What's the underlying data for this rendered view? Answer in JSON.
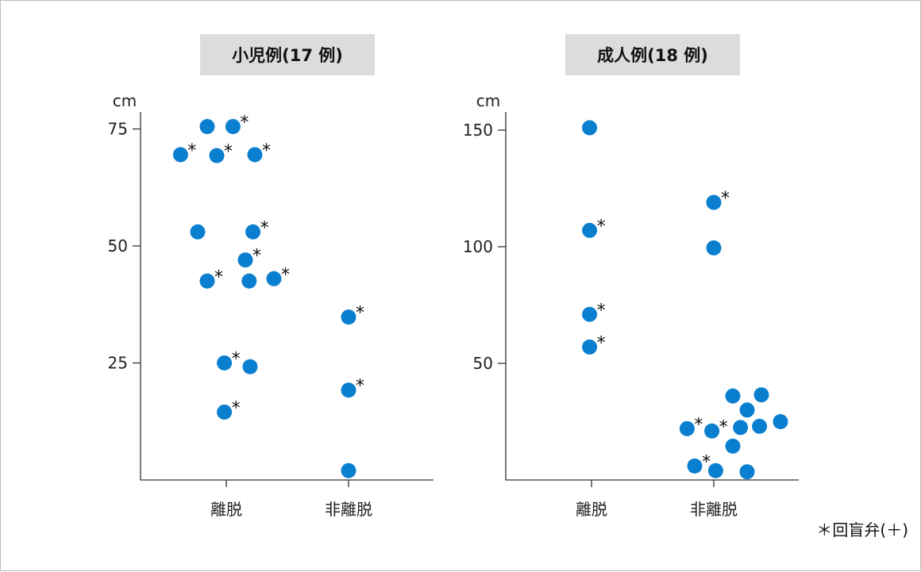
{
  "footnote": "＊回盲弁(＋)",
  "colors": {
    "point": "#0a7fcf",
    "title_bg": "#dcdcdc"
  },
  "chart_data": [
    {
      "type": "scatter",
      "title": "小児例(17 例)",
      "ylabel": "cm",
      "ylim": [
        0,
        76
      ],
      "yticks": [
        25,
        50,
        75
      ],
      "categories": [
        "離脱",
        "非離脱"
      ],
      "points": [
        {
          "category": "離脱",
          "x": -0.2,
          "y": 75.5,
          "star": false
        },
        {
          "category": "離脱",
          "x": 0.07,
          "y": 75.5,
          "star": true
        },
        {
          "category": "離脱",
          "x": -0.48,
          "y": 69.5,
          "star": true
        },
        {
          "category": "離脱",
          "x": -0.1,
          "y": 69.3,
          "star": true
        },
        {
          "category": "離脱",
          "x": 0.3,
          "y": 69.5,
          "star": true
        },
        {
          "category": "離脱",
          "x": -0.3,
          "y": 53.0,
          "star": false
        },
        {
          "category": "離脱",
          "x": 0.28,
          "y": 53.0,
          "star": true
        },
        {
          "category": "離脱",
          "x": 0.2,
          "y": 47.0,
          "star": true
        },
        {
          "category": "離脱",
          "x": -0.2,
          "y": 42.5,
          "star": true
        },
        {
          "category": "離脱",
          "x": 0.24,
          "y": 42.5,
          "star": false
        },
        {
          "category": "離脱",
          "x": 0.5,
          "y": 43.0,
          "star": true
        },
        {
          "category": "離脱",
          "x": -0.02,
          "y": 25.0,
          "star": true
        },
        {
          "category": "離脱",
          "x": 0.25,
          "y": 24.2,
          "star": false
        },
        {
          "category": "離脱",
          "x": -0.02,
          "y": 14.5,
          "star": true
        },
        {
          "category": "非離脱",
          "x": 0.0,
          "y": 34.8,
          "star": true
        },
        {
          "category": "非離脱",
          "x": 0.0,
          "y": 19.2,
          "star": true
        },
        {
          "category": "非離脱",
          "x": 0.0,
          "y": 2.0,
          "star": false
        }
      ]
    },
    {
      "type": "scatter",
      "title": "成人例(18 例)",
      "ylabel": "cm",
      "ylim": [
        0,
        152
      ],
      "yticks": [
        50,
        100,
        150
      ],
      "categories": [
        "離脱",
        "非離脱"
      ],
      "points": [
        {
          "category": "離脱",
          "x": -0.02,
          "y": 151.0,
          "star": false
        },
        {
          "category": "離脱",
          "x": -0.02,
          "y": 107.0,
          "star": true
        },
        {
          "category": "離脱",
          "x": -0.02,
          "y": 71.0,
          "star": true
        },
        {
          "category": "離脱",
          "x": -0.02,
          "y": 57.0,
          "star": true
        },
        {
          "category": "非離脱",
          "x": 0.0,
          "y": 119.0,
          "star": true
        },
        {
          "category": "非離脱",
          "x": 0.0,
          "y": 99.5,
          "star": false
        },
        {
          "category": "非離脱",
          "x": 0.2,
          "y": 36.0,
          "star": false
        },
        {
          "category": "非離脱",
          "x": 0.5,
          "y": 36.5,
          "star": false
        },
        {
          "category": "非離脱",
          "x": 0.35,
          "y": 30.0,
          "star": false
        },
        {
          "category": "非離脱",
          "x": -0.28,
          "y": 22.0,
          "star": true
        },
        {
          "category": "非離脱",
          "x": -0.02,
          "y": 21.0,
          "star": true
        },
        {
          "category": "非離脱",
          "x": 0.28,
          "y": 22.5,
          "star": false
        },
        {
          "category": "非離脱",
          "x": 0.48,
          "y": 23.0,
          "star": false
        },
        {
          "category": "非離脱",
          "x": 0.7,
          "y": 25.0,
          "star": false
        },
        {
          "category": "非離脱",
          "x": 0.2,
          "y": 14.5,
          "star": false
        },
        {
          "category": "非離脱",
          "x": -0.2,
          "y": 6.0,
          "star": true
        },
        {
          "category": "非離脱",
          "x": 0.02,
          "y": 4.0,
          "star": false
        },
        {
          "category": "非離脱",
          "x": 0.35,
          "y": 3.5,
          "star": false
        }
      ]
    }
  ]
}
